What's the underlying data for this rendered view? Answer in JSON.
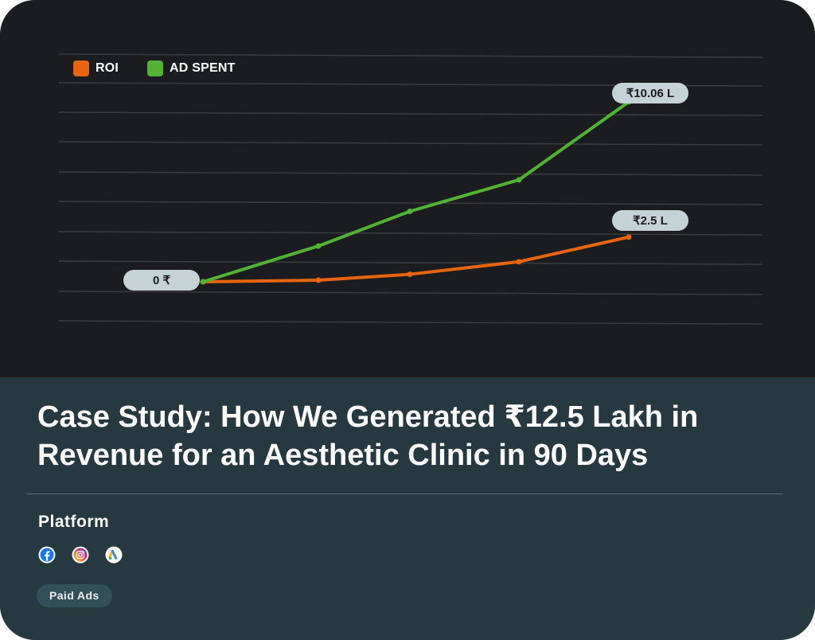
{
  "colors": {
    "roi": "#e8650f",
    "ad_spent": "#52b233",
    "label_bg": "#c5d3d7",
    "grid": "#3a3c40"
  },
  "chart_data": {
    "type": "line",
    "x": [
      0,
      1,
      2,
      3,
      4
    ],
    "series": [
      {
        "name": "ROI",
        "values": [
          0,
          0.09,
          0.42,
          1.12,
          2.5
        ]
      },
      {
        "name": "AD SPENT",
        "values": [
          0,
          2.0,
          3.94,
          5.7,
          10.06
        ]
      }
    ],
    "data_labels": [
      "0 ₹",
      "₹10.06 L",
      "₹2.5 L"
    ],
    "grid": true,
    "legend_position": "top-left"
  },
  "legend": {
    "roi": "ROI",
    "ad_spent": "AD SPENT"
  },
  "title": "Case Study: How We Generated ₹12.5 Lakh in Revenue for an Aesthetic Clinic in 90 Days",
  "platform": {
    "label": "Platform",
    "icons": [
      "facebook-icon",
      "instagram-icon",
      "google-ads-icon"
    ]
  },
  "tag": "Paid Ads"
}
